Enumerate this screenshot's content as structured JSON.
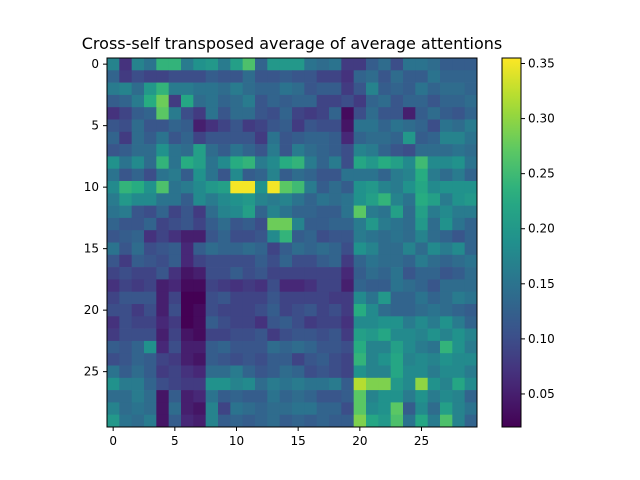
{
  "chart_data": {
    "type": "heatmap",
    "title": "Cross-self transposed average of average attentions",
    "xlabel": "",
    "ylabel": "",
    "rows": 30,
    "cols": 30,
    "x_ticks": [
      0,
      5,
      10,
      15,
      20,
      25
    ],
    "y_ticks": [
      0,
      5,
      10,
      15,
      20,
      25
    ],
    "x_tick_labels": [
      "0",
      "5",
      "10",
      "15",
      "20",
      "25"
    ],
    "y_tick_labels": [
      "0",
      "5",
      "10",
      "15",
      "20",
      "25"
    ],
    "colormap": "viridis",
    "colorbar": {
      "min": 0.02,
      "max": 0.355,
      "ticks": [
        0.05,
        0.1,
        0.15,
        0.2,
        0.25,
        0.3,
        0.35
      ],
      "tick_labels": [
        "0.05",
        "0.10",
        "0.15",
        "0.20",
        "0.25",
        "0.30",
        "0.35"
      ]
    },
    "grid": false,
    "values": [
      [
        0.17,
        0.07,
        0.17,
        0.15,
        0.24,
        0.24,
        0.16,
        0.19,
        0.2,
        0.16,
        0.21,
        0.26,
        0.13,
        0.2,
        0.2,
        0.2,
        0.15,
        0.14,
        0.15,
        0.08,
        0.08,
        0.12,
        0.14,
        0.1,
        0.15,
        0.15,
        0.14,
        0.12,
        0.12,
        0.12
      ],
      [
        0.13,
        0.08,
        0.1,
        0.09,
        0.09,
        0.1,
        0.1,
        0.1,
        0.12,
        0.11,
        0.11,
        0.14,
        0.11,
        0.11,
        0.12,
        0.11,
        0.11,
        0.09,
        0.09,
        0.07,
        0.13,
        0.14,
        0.11,
        0.14,
        0.12,
        0.12,
        0.15,
        0.13,
        0.13,
        0.13
      ],
      [
        0.16,
        0.17,
        0.14,
        0.2,
        0.24,
        0.16,
        0.16,
        0.15,
        0.15,
        0.14,
        0.16,
        0.14,
        0.13,
        0.13,
        0.15,
        0.14,
        0.11,
        0.12,
        0.12,
        0.08,
        0.11,
        0.17,
        0.12,
        0.13,
        0.12,
        0.15,
        0.13,
        0.14,
        0.14,
        0.13
      ],
      [
        0.12,
        0.13,
        0.16,
        0.23,
        0.28,
        0.08,
        0.22,
        0.14,
        0.15,
        0.13,
        0.14,
        0.16,
        0.11,
        0.13,
        0.12,
        0.13,
        0.13,
        0.09,
        0.09,
        0.1,
        0.08,
        0.13,
        0.14,
        0.11,
        0.13,
        0.13,
        0.11,
        0.13,
        0.13,
        0.14
      ],
      [
        0.07,
        0.09,
        0.12,
        0.13,
        0.27,
        0.16,
        0.1,
        0.08,
        0.15,
        0.11,
        0.14,
        0.14,
        0.11,
        0.1,
        0.13,
        0.09,
        0.08,
        0.09,
        0.13,
        0.03,
        0.1,
        0.14,
        0.11,
        0.11,
        0.05,
        0.12,
        0.14,
        0.12,
        0.11,
        0.13
      ],
      [
        0.11,
        0.1,
        0.14,
        0.11,
        0.11,
        0.13,
        0.12,
        0.05,
        0.07,
        0.09,
        0.11,
        0.08,
        0.09,
        0.11,
        0.12,
        0.08,
        0.11,
        0.1,
        0.1,
        0.04,
        0.15,
        0.15,
        0.13,
        0.15,
        0.14,
        0.13,
        0.1,
        0.15,
        0.14,
        0.16
      ],
      [
        0.13,
        0.08,
        0.14,
        0.12,
        0.15,
        0.11,
        0.13,
        0.09,
        0.11,
        0.11,
        0.11,
        0.11,
        0.08,
        0.15,
        0.11,
        0.12,
        0.13,
        0.13,
        0.12,
        0.06,
        0.13,
        0.14,
        0.14,
        0.13,
        0.2,
        0.12,
        0.13,
        0.17,
        0.17,
        0.15
      ],
      [
        0.11,
        0.12,
        0.14,
        0.14,
        0.19,
        0.15,
        0.14,
        0.21,
        0.14,
        0.12,
        0.15,
        0.13,
        0.11,
        0.16,
        0.11,
        0.16,
        0.14,
        0.13,
        0.12,
        0.1,
        0.17,
        0.16,
        0.13,
        0.11,
        0.1,
        0.14,
        0.14,
        0.14,
        0.15,
        0.14
      ],
      [
        0.19,
        0.15,
        0.18,
        0.14,
        0.24,
        0.15,
        0.23,
        0.21,
        0.15,
        0.18,
        0.23,
        0.24,
        0.16,
        0.18,
        0.23,
        0.24,
        0.16,
        0.13,
        0.16,
        0.1,
        0.22,
        0.2,
        0.23,
        0.21,
        0.18,
        0.25,
        0.18,
        0.18,
        0.19,
        0.15
      ],
      [
        0.15,
        0.11,
        0.13,
        0.1,
        0.15,
        0.16,
        0.12,
        0.19,
        0.15,
        0.11,
        0.18,
        0.12,
        0.13,
        0.17,
        0.12,
        0.14,
        0.13,
        0.11,
        0.11,
        0.15,
        0.15,
        0.15,
        0.13,
        0.16,
        0.17,
        0.23,
        0.16,
        0.14,
        0.16,
        0.13
      ],
      [
        0.18,
        0.24,
        0.23,
        0.19,
        0.26,
        0.15,
        0.16,
        0.18,
        0.2,
        0.21,
        0.35,
        0.35,
        0.19,
        0.35,
        0.27,
        0.25,
        0.16,
        0.12,
        0.14,
        0.12,
        0.19,
        0.2,
        0.17,
        0.16,
        0.19,
        0.22,
        0.18,
        0.19,
        0.19,
        0.19
      ],
      [
        0.16,
        0.2,
        0.18,
        0.18,
        0.15,
        0.15,
        0.12,
        0.18,
        0.16,
        0.18,
        0.19,
        0.2,
        0.17,
        0.16,
        0.17,
        0.15,
        0.13,
        0.15,
        0.14,
        0.15,
        0.19,
        0.21,
        0.24,
        0.17,
        0.15,
        0.23,
        0.21,
        0.16,
        0.19,
        0.2
      ],
      [
        0.15,
        0.16,
        0.11,
        0.1,
        0.13,
        0.09,
        0.11,
        0.08,
        0.14,
        0.17,
        0.18,
        0.21,
        0.13,
        0.17,
        0.15,
        0.13,
        0.13,
        0.12,
        0.12,
        0.15,
        0.27,
        0.16,
        0.15,
        0.21,
        0.14,
        0.21,
        0.16,
        0.18,
        0.16,
        0.16
      ],
      [
        0.13,
        0.11,
        0.11,
        0.13,
        0.09,
        0.1,
        0.11,
        0.09,
        0.12,
        0.14,
        0.11,
        0.12,
        0.1,
        0.28,
        0.28,
        0.17,
        0.12,
        0.12,
        0.13,
        0.13,
        0.16,
        0.2,
        0.16,
        0.15,
        0.14,
        0.2,
        0.14,
        0.19,
        0.15,
        0.13
      ],
      [
        0.11,
        0.12,
        0.13,
        0.07,
        0.09,
        0.07,
        0.05,
        0.05,
        0.11,
        0.13,
        0.1,
        0.1,
        0.11,
        0.18,
        0.24,
        0.12,
        0.13,
        0.1,
        0.11,
        0.11,
        0.16,
        0.15,
        0.14,
        0.15,
        0.14,
        0.17,
        0.14,
        0.13,
        0.11,
        0.13
      ],
      [
        0.15,
        0.11,
        0.14,
        0.1,
        0.11,
        0.12,
        0.06,
        0.12,
        0.14,
        0.13,
        0.13,
        0.14,
        0.13,
        0.09,
        0.12,
        0.14,
        0.13,
        0.14,
        0.13,
        0.1,
        0.19,
        0.17,
        0.14,
        0.14,
        0.17,
        0.14,
        0.18,
        0.16,
        0.18,
        0.13
      ],
      [
        0.11,
        0.08,
        0.12,
        0.11,
        0.1,
        0.12,
        0.06,
        0.09,
        0.1,
        0.1,
        0.1,
        0.1,
        0.12,
        0.1,
        0.13,
        0.1,
        0.1,
        0.12,
        0.13,
        0.08,
        0.13,
        0.15,
        0.14,
        0.14,
        0.13,
        0.16,
        0.14,
        0.13,
        0.14,
        0.15
      ],
      [
        0.09,
        0.1,
        0.09,
        0.09,
        0.11,
        0.07,
        0.04,
        0.05,
        0.1,
        0.1,
        0.12,
        0.1,
        0.11,
        0.09,
        0.09,
        0.09,
        0.09,
        0.09,
        0.09,
        0.06,
        0.12,
        0.14,
        0.13,
        0.15,
        0.11,
        0.13,
        0.13,
        0.11,
        0.12,
        0.14
      ],
      [
        0.07,
        0.09,
        0.08,
        0.09,
        0.05,
        0.06,
        0.03,
        0.03,
        0.09,
        0.08,
        0.07,
        0.08,
        0.07,
        0.1,
        0.06,
        0.06,
        0.07,
        0.09,
        0.09,
        0.05,
        0.13,
        0.12,
        0.12,
        0.15,
        0.14,
        0.13,
        0.11,
        0.14,
        0.14,
        0.14
      ],
      [
        0.09,
        0.11,
        0.11,
        0.11,
        0.05,
        0.09,
        0.02,
        0.02,
        0.1,
        0.11,
        0.09,
        0.09,
        0.09,
        0.11,
        0.09,
        0.09,
        0.09,
        0.09,
        0.08,
        0.08,
        0.18,
        0.15,
        0.2,
        0.13,
        0.13,
        0.15,
        0.13,
        0.14,
        0.16,
        0.15
      ],
      [
        0.1,
        0.1,
        0.08,
        0.1,
        0.05,
        0.1,
        0.02,
        0.03,
        0.1,
        0.09,
        0.09,
        0.09,
        0.1,
        0.12,
        0.09,
        0.1,
        0.11,
        0.09,
        0.1,
        0.08,
        0.23,
        0.18,
        0.14,
        0.13,
        0.13,
        0.14,
        0.15,
        0.14,
        0.13,
        0.12
      ],
      [
        0.07,
        0.1,
        0.09,
        0.09,
        0.06,
        0.08,
        0.02,
        0.03,
        0.12,
        0.1,
        0.09,
        0.09,
        0.07,
        0.11,
        0.12,
        0.1,
        0.08,
        0.09,
        0.09,
        0.07,
        0.18,
        0.18,
        0.19,
        0.19,
        0.16,
        0.18,
        0.16,
        0.19,
        0.16,
        0.13
      ],
      [
        0.08,
        0.1,
        0.1,
        0.1,
        0.05,
        0.09,
        0.04,
        0.03,
        0.09,
        0.09,
        0.1,
        0.1,
        0.11,
        0.08,
        0.1,
        0.11,
        0.11,
        0.1,
        0.11,
        0.08,
        0.21,
        0.2,
        0.22,
        0.18,
        0.18,
        0.17,
        0.19,
        0.17,
        0.19,
        0.17
      ],
      [
        0.12,
        0.11,
        0.13,
        0.19,
        0.06,
        0.1,
        0.05,
        0.05,
        0.12,
        0.13,
        0.11,
        0.11,
        0.11,
        0.14,
        0.13,
        0.14,
        0.13,
        0.11,
        0.11,
        0.1,
        0.23,
        0.17,
        0.17,
        0.21,
        0.18,
        0.16,
        0.15,
        0.24,
        0.19,
        0.16
      ],
      [
        0.1,
        0.11,
        0.13,
        0.12,
        0.09,
        0.08,
        0.05,
        0.04,
        0.12,
        0.11,
        0.1,
        0.11,
        0.1,
        0.12,
        0.12,
        0.09,
        0.11,
        0.12,
        0.1,
        0.09,
        0.24,
        0.17,
        0.19,
        0.22,
        0.17,
        0.18,
        0.17,
        0.19,
        0.18,
        0.18
      ],
      [
        0.15,
        0.12,
        0.14,
        0.12,
        0.08,
        0.09,
        0.07,
        0.06,
        0.14,
        0.14,
        0.16,
        0.13,
        0.11,
        0.12,
        0.14,
        0.13,
        0.1,
        0.11,
        0.1,
        0.09,
        0.19,
        0.17,
        0.17,
        0.22,
        0.18,
        0.18,
        0.16,
        0.18,
        0.18,
        0.16
      ],
      [
        0.19,
        0.16,
        0.16,
        0.13,
        0.1,
        0.09,
        0.08,
        0.08,
        0.19,
        0.19,
        0.17,
        0.18,
        0.14,
        0.16,
        0.15,
        0.16,
        0.15,
        0.15,
        0.16,
        0.12,
        0.32,
        0.29,
        0.29,
        0.2,
        0.18,
        0.3,
        0.19,
        0.17,
        0.22,
        0.18
      ],
      [
        0.14,
        0.14,
        0.16,
        0.14,
        0.04,
        0.12,
        0.05,
        0.06,
        0.15,
        0.12,
        0.13,
        0.12,
        0.12,
        0.15,
        0.13,
        0.14,
        0.13,
        0.11,
        0.11,
        0.12,
        0.27,
        0.17,
        0.19,
        0.19,
        0.16,
        0.19,
        0.16,
        0.18,
        0.17,
        0.13
      ],
      [
        0.17,
        0.14,
        0.15,
        0.14,
        0.04,
        0.14,
        0.05,
        0.04,
        0.17,
        0.09,
        0.15,
        0.14,
        0.13,
        0.14,
        0.14,
        0.15,
        0.15,
        0.13,
        0.13,
        0.1,
        0.27,
        0.18,
        0.19,
        0.27,
        0.12,
        0.18,
        0.14,
        0.21,
        0.17,
        0.15
      ],
      [
        0.2,
        0.15,
        0.14,
        0.16,
        0.04,
        0.12,
        0.06,
        0.05,
        0.17,
        0.12,
        0.13,
        0.12,
        0.13,
        0.14,
        0.12,
        0.13,
        0.12,
        0.13,
        0.12,
        0.12,
        0.29,
        0.22,
        0.2,
        0.26,
        0.15,
        0.22,
        0.16,
        0.26,
        0.17,
        0.13
      ]
    ]
  }
}
